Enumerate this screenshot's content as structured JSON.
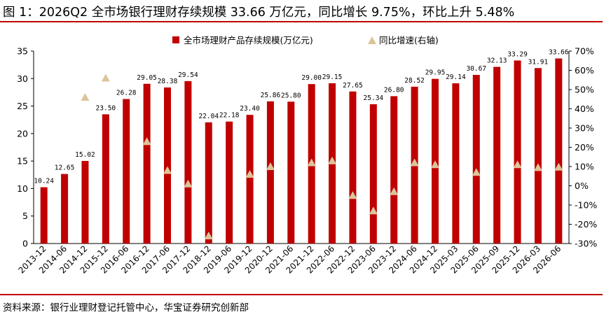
{
  "header": {
    "title": "图 1：2026Q2 全市场银行理财存续规模 33.66 万亿元，同比增长 9.75%，环比上升 5.48%"
  },
  "footer": {
    "source": "资料来源：银行业理财登记托管中心，华宝证券研究创新部"
  },
  "colors": {
    "bar": "#c00000",
    "marker": "#dcc49a",
    "rule": "#c00000"
  },
  "chart_data": {
    "type": "bar",
    "categories": [
      "2013-12",
      "2014-06",
      "2014-12",
      "2015-12",
      "2016-06",
      "2016-12",
      "2017-06",
      "2017-12",
      "2018-12",
      "2019-06",
      "2019-12",
      "2020-12",
      "2021-06",
      "2021-12",
      "2022-06",
      "2022-12",
      "2023-06",
      "2023-12",
      "2024-06",
      "2024-12",
      "2025-03",
      "2025-06",
      "2025-09",
      "2025-12",
      "2026-03",
      "2026-06"
    ],
    "series": [
      {
        "name": "全市场理财产品存续规模(万亿元)",
        "type": "bar",
        "axis": "left",
        "values": [
          10.24,
          12.65,
          15.02,
          23.5,
          26.28,
          29.05,
          28.38,
          29.54,
          22.04,
          22.18,
          23.4,
          25.86,
          25.8,
          29.0,
          29.15,
          27.65,
          25.34,
          26.8,
          28.52,
          29.95,
          29.14,
          30.67,
          32.13,
          33.29,
          31.91,
          33.66
        ],
        "labels": [
          "10.24",
          "12.65",
          "15.02",
          "23.50",
          "26.28",
          "29.05",
          "28.38",
          "29.54",
          "22.04",
          "22.18",
          "23.40",
          "25.86",
          "25.80",
          "29.00",
          "29.15",
          "27.65",
          "25.34",
          "26.80",
          "28.52",
          "29.95",
          "29.14",
          "30.67",
          "32.13",
          "33.29",
          "31.91",
          "33.66"
        ]
      },
      {
        "name": "同比增速(右轴)",
        "type": "scatter",
        "marker": "triangle",
        "axis": "right",
        "values": [
          null,
          null,
          46,
          56,
          null,
          23,
          8,
          1,
          -26,
          null,
          6,
          10,
          null,
          12,
          13,
          -5,
          -13,
          -3,
          12,
          11,
          null,
          7,
          null,
          11,
          9.5,
          9.75
        ]
      }
    ],
    "left_axis": {
      "ylim": [
        0,
        35
      ],
      "ticks": [
        "0",
        "5",
        "10",
        "15",
        "20",
        "25",
        "30",
        "35"
      ]
    },
    "right_axis": {
      "ylim": [
        -30,
        70
      ],
      "ticks": [
        "-30%",
        "-20%",
        "-10%",
        "0%",
        "10%",
        "20%",
        "30%",
        "40%",
        "50%",
        "60%",
        "70%"
      ]
    },
    "legend": {
      "placement": "top-center"
    },
    "grid": false
  }
}
